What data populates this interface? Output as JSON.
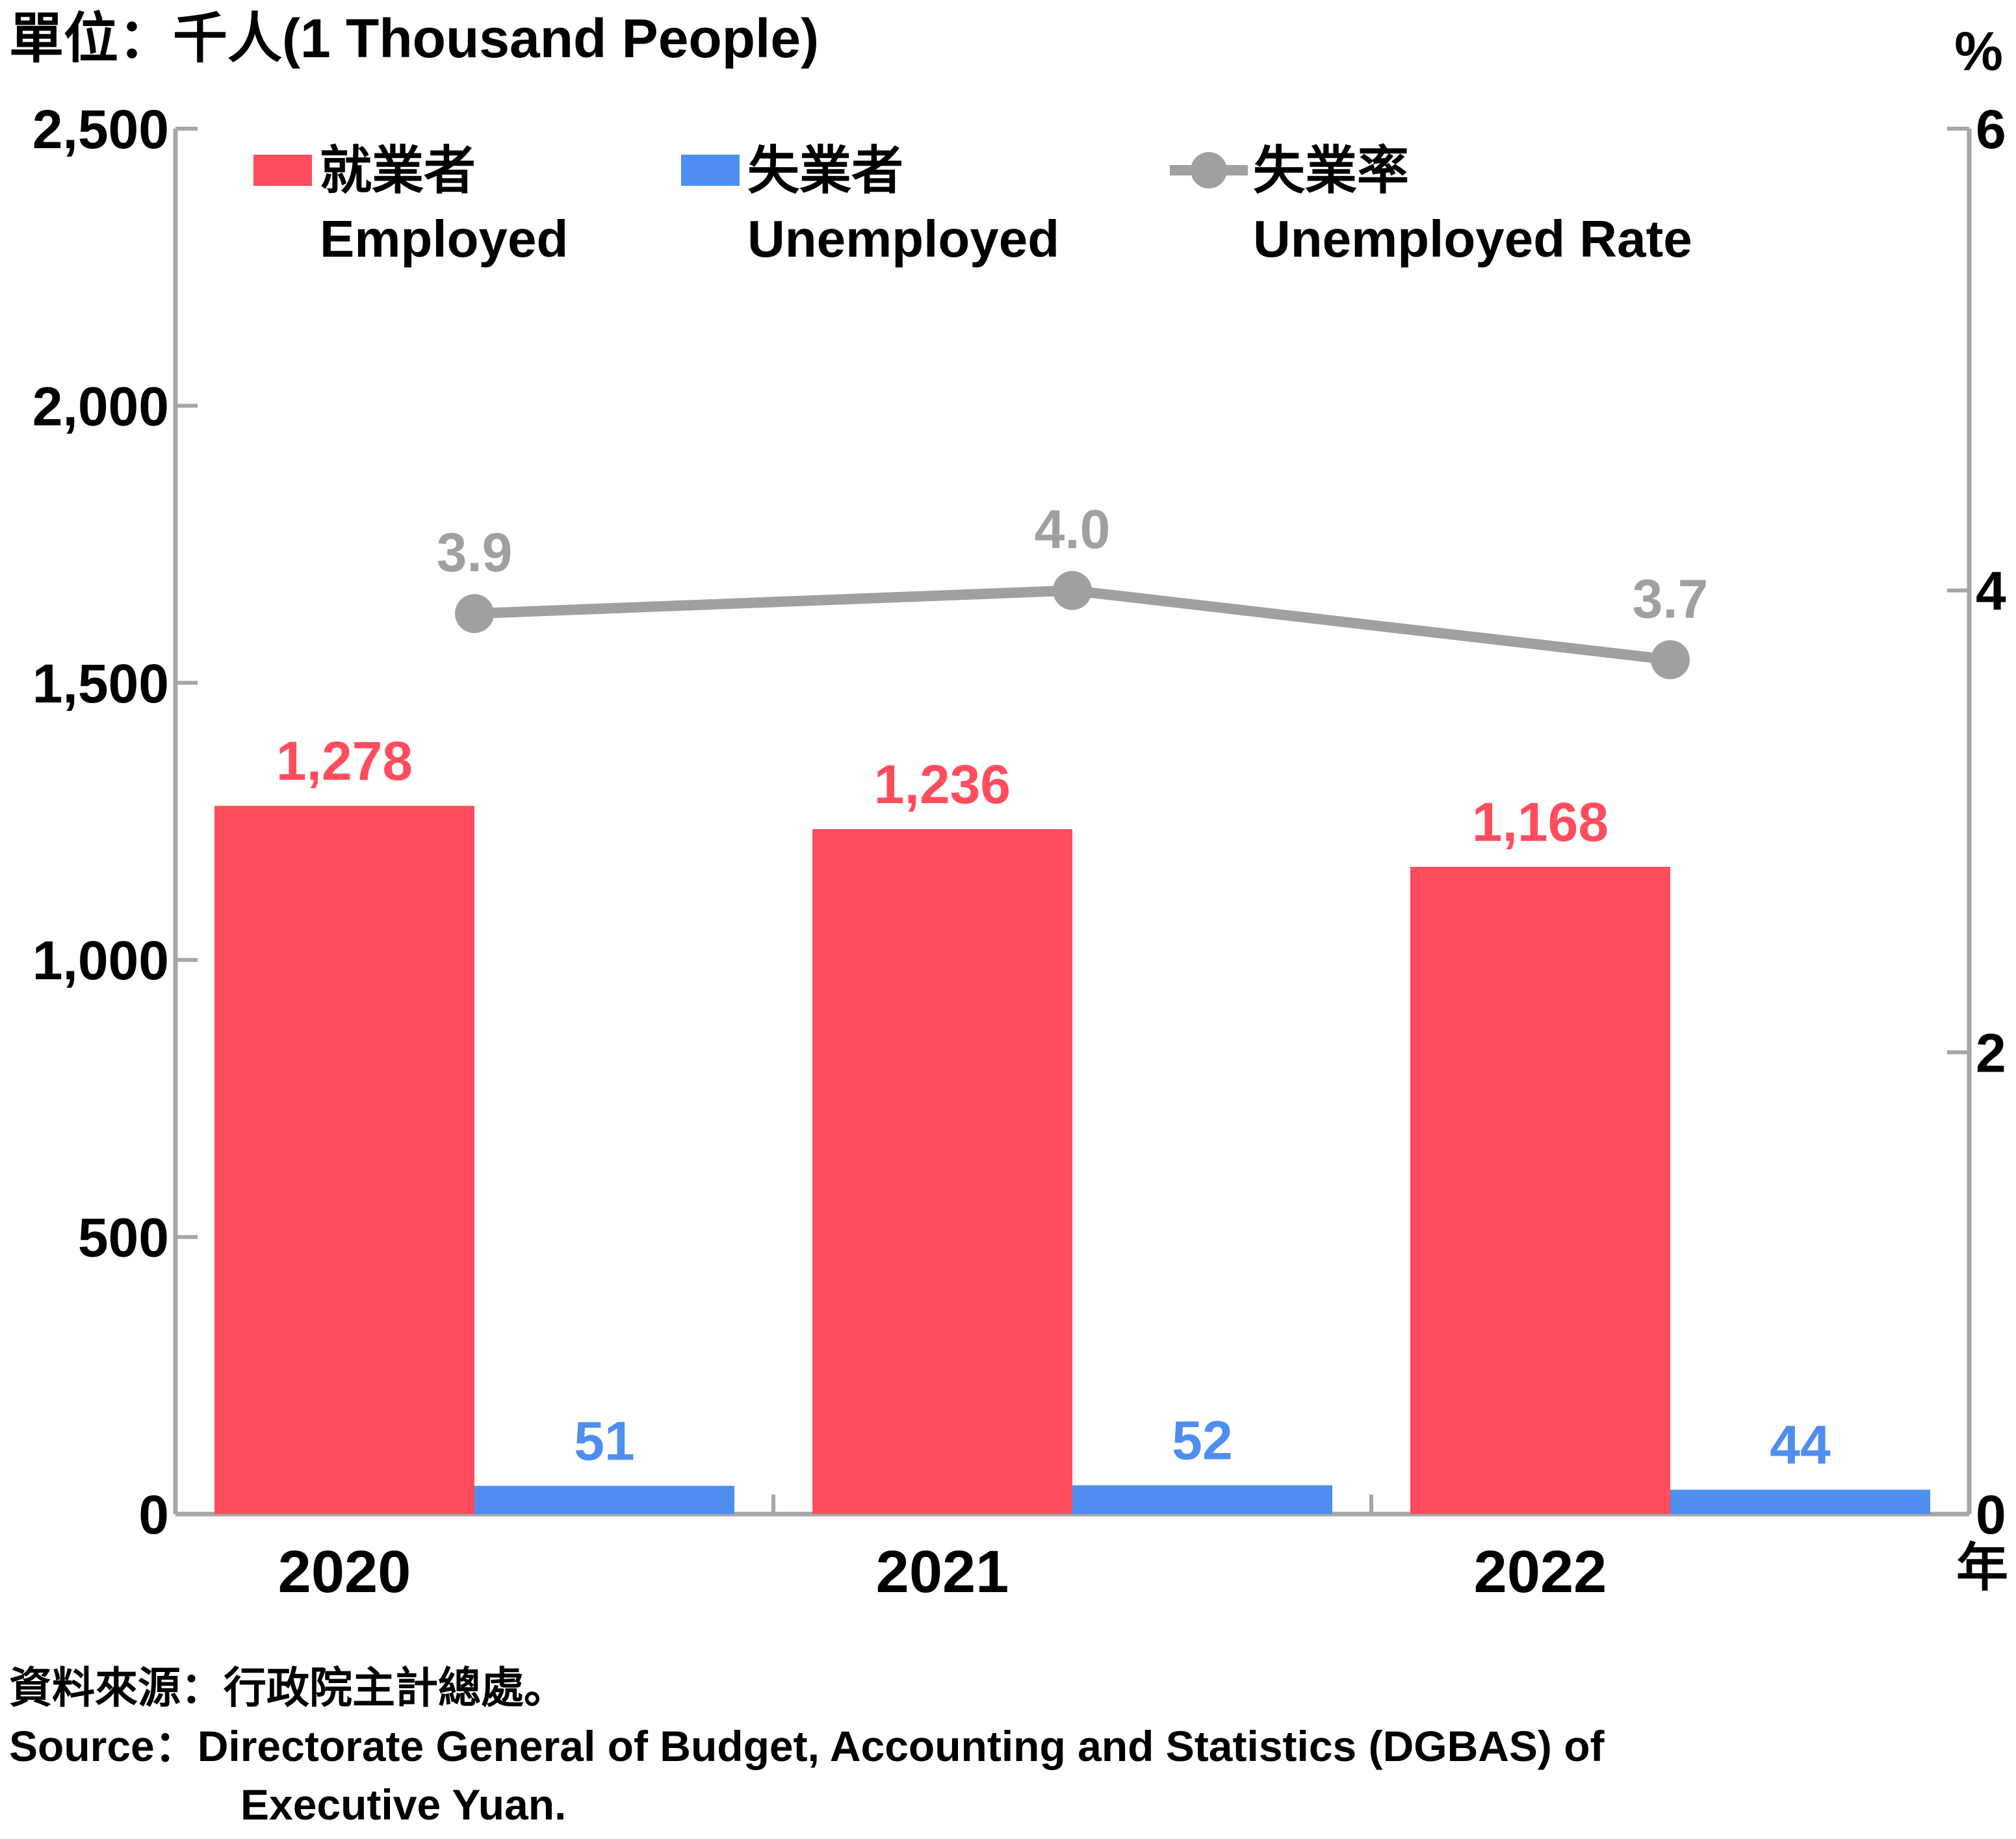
{
  "chart_data": {
    "type": "bar",
    "unit_label": "單位：千人(1 Thousand People)",
    "right_unit_label": "%",
    "x_unit_label": "年",
    "categories": [
      "2020",
      "2021",
      "2022"
    ],
    "series": [
      {
        "name_zh": "就業者",
        "name_en": "Employed",
        "type": "bar",
        "axis": "left",
        "color": "#ff4d5e",
        "values": [
          1278,
          1236,
          1168
        ],
        "value_labels": [
          "1,278",
          "1,236",
          "1,168"
        ]
      },
      {
        "name_zh": "失業者",
        "name_en": "Unemployed",
        "type": "bar",
        "axis": "left",
        "color": "#4f8ef0",
        "values": [
          51,
          52,
          44
        ],
        "value_labels": [
          "51",
          "52",
          "44"
        ]
      },
      {
        "name_zh": "失業率",
        "name_en": "Unemployed Rate",
        "type": "line",
        "axis": "right",
        "color": "#a0a0a0",
        "values": [
          3.9,
          4.0,
          3.7
        ],
        "value_labels": [
          "3.9",
          "4.0",
          "3.7"
        ]
      }
    ],
    "y_left": {
      "min": 0,
      "max": 2500,
      "ticks": [
        0,
        500,
        1000,
        1500,
        2000,
        2500
      ],
      "tick_labels": [
        "0",
        "500",
        "1,000",
        "1,500",
        "2,000",
        "2,500"
      ]
    },
    "y_right": {
      "min": 0,
      "max": 6,
      "ticks": [
        0,
        2,
        4,
        6
      ],
      "tick_labels": [
        "0",
        "2",
        "4",
        "6"
      ]
    },
    "legend_position": "top",
    "grid": false
  },
  "source": {
    "zh": "資料來源：行政院主計總處。",
    "en_line1": "Source：Directorate General of Budget, Accounting and Statistics (DGBAS) of",
    "en_line2": "Executive Yuan."
  }
}
